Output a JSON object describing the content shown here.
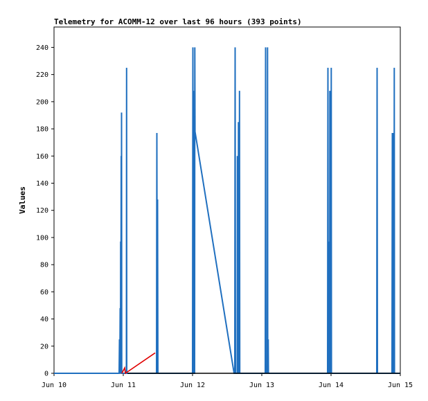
{
  "chart_data": {
    "type": "line",
    "title": "Telemetry for ACOMM-12 over last 96 hours (393 points)",
    "xlabel": "",
    "ylabel": "Values",
    "xlim": [
      10,
      15
    ],
    "ylim": [
      0,
      255
    ],
    "x_tick_labels": [
      {
        "x": 10,
        "label": "Jun 10"
      },
      {
        "x": 11,
        "label": "Jun 11"
      },
      {
        "x": 12,
        "label": "Jun 12"
      },
      {
        "x": 13,
        "label": "Jun 13"
      },
      {
        "x": 14,
        "label": "Jun 14"
      },
      {
        "x": 15,
        "label": "Jun 15"
      }
    ],
    "y_ticks": [
      0,
      20,
      40,
      60,
      80,
      100,
      120,
      140,
      160,
      180,
      200,
      220,
      240
    ],
    "grid": false,
    "legend": "none",
    "series": [
      {
        "color": "#1f6fbf",
        "points": [
          [
            10.0,
            0
          ],
          [
            10.94,
            0
          ],
          [
            10.945,
            25
          ],
          [
            10.95,
            0
          ],
          [
            10.955,
            48
          ],
          [
            10.96,
            0
          ],
          [
            10.962,
            97
          ],
          [
            10.965,
            0
          ],
          [
            10.97,
            160
          ],
          [
            10.972,
            0
          ],
          [
            10.975,
            192
          ],
          [
            10.978,
            0
          ],
          [
            10.98,
            0
          ],
          [
            11.045,
            0
          ],
          [
            11.048,
            225
          ],
          [
            11.05,
            0
          ],
          [
            11.48,
            0
          ],
          [
            11.485,
            177
          ],
          [
            11.49,
            0
          ],
          [
            11.495,
            128
          ],
          [
            11.5,
            0
          ],
          [
            12.0,
            0
          ],
          [
            12.005,
            240
          ],
          [
            12.01,
            0
          ],
          [
            12.012,
            208
          ],
          [
            12.015,
            0
          ],
          [
            12.02,
            0
          ],
          [
            12.03,
            0
          ],
          [
            12.033,
            240
          ],
          [
            12.036,
            178
          ],
          [
            12.6,
            0
          ],
          [
            12.61,
            0
          ],
          [
            12.615,
            240
          ],
          [
            12.62,
            0
          ],
          [
            12.645,
            0
          ],
          [
            12.648,
            160
          ],
          [
            12.652,
            0
          ],
          [
            12.66,
            0
          ],
          [
            12.663,
            185
          ],
          [
            12.666,
            0
          ],
          [
            12.675,
            0
          ],
          [
            12.678,
            208
          ],
          [
            12.682,
            0
          ],
          [
            12.7,
            0
          ],
          [
            13.05,
            0
          ],
          [
            13.055,
            240
          ],
          [
            13.06,
            0
          ],
          [
            13.08,
            0
          ],
          [
            13.083,
            240
          ],
          [
            13.086,
            0
          ],
          [
            13.09,
            0
          ],
          [
            13.093,
            25
          ],
          [
            13.096,
            0
          ],
          [
            13.95,
            0
          ],
          [
            13.955,
            225
          ],
          [
            13.96,
            0
          ],
          [
            13.962,
            97
          ],
          [
            13.965,
            0
          ],
          [
            13.98,
            0
          ],
          [
            13.983,
            208
          ],
          [
            13.986,
            0
          ],
          [
            14.0,
            0
          ],
          [
            14.003,
            225
          ],
          [
            14.006,
            0
          ],
          [
            14.66,
            0
          ],
          [
            14.665,
            225
          ],
          [
            14.67,
            0
          ],
          [
            14.88,
            0
          ],
          [
            14.885,
            177
          ],
          [
            14.89,
            0
          ],
          [
            14.9,
            0
          ],
          [
            14.903,
            177
          ],
          [
            14.906,
            0
          ],
          [
            14.91,
            0
          ],
          [
            14.913,
            225
          ],
          [
            14.916,
            0
          ],
          [
            15.0,
            0
          ]
        ]
      },
      {
        "color": "#e00000",
        "points": [
          [
            10.98,
            0
          ],
          [
            11.02,
            4
          ],
          [
            11.03,
            0
          ],
          [
            11.46,
            15
          ]
        ]
      },
      {
        "color": "#000000",
        "points": [
          [
            11.06,
            0
          ],
          [
            15.0,
            0
          ]
        ]
      }
    ]
  }
}
